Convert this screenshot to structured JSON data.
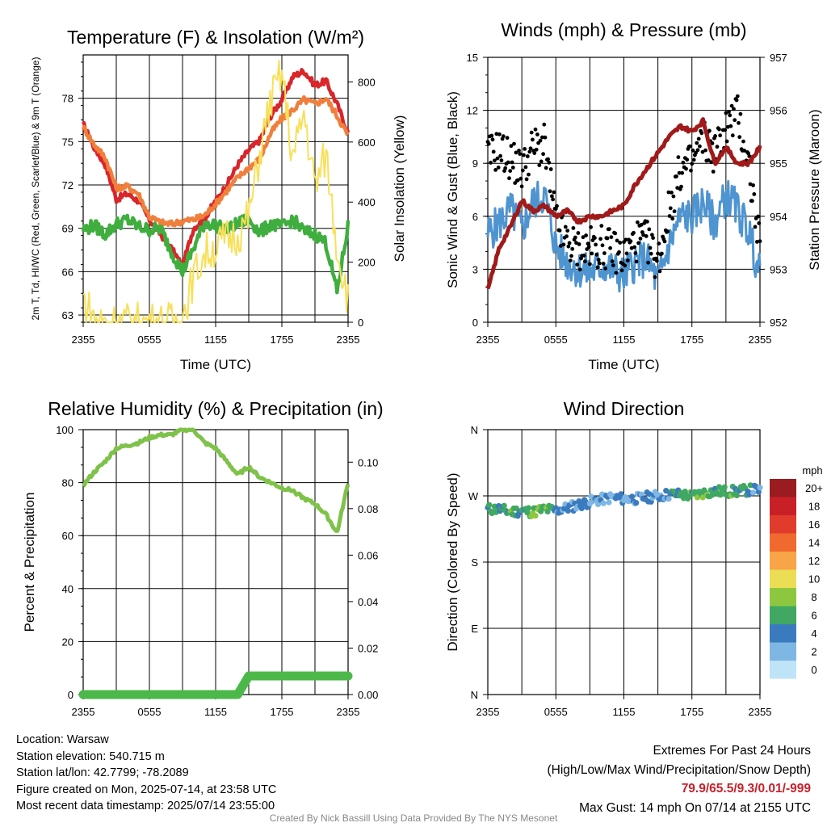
{
  "chart_data": [
    {
      "type": "line",
      "title": "Temperature (F) & Insolation (W/m²)",
      "xlabel": "Time (UTC)",
      "ylabel": "2m T, Td, HI/WC (Red, Green, Scarlet/Blue) & 9m T (Orange)",
      "ylabel2": "Solar Insolation (Yellow)",
      "x_ticks": [
        "2355",
        "0555",
        "1155",
        "1755",
        "2355"
      ],
      "y_ticks": [
        63,
        66,
        69,
        72,
        75,
        78
      ],
      "y2_ticks": [
        0,
        200,
        400,
        600,
        800
      ],
      "ylim": [
        62.5,
        81
      ],
      "y2lim": [
        0,
        890
      ],
      "x_hours": [
        0,
        1,
        2,
        3,
        4,
        5,
        6,
        7,
        8,
        9,
        10,
        11,
        12,
        13,
        14,
        15,
        16,
        17,
        18,
        19,
        20,
        21,
        22,
        23,
        24
      ],
      "series": [
        {
          "axis": "left",
          "color": "#d8262b",
          "values": [
            76.2,
            74.6,
            73.4,
            71.0,
            71.4,
            70.9,
            69.6,
            68.6,
            67.6,
            66.4,
            69.0,
            69.7,
            70.9,
            72.0,
            73.4,
            74.4,
            75.1,
            76.8,
            77.9,
            79.5,
            79.9,
            78.9,
            79.2,
            77.6,
            75.6
          ]
        },
        {
          "axis": "left",
          "color": "#f07f3c",
          "values": [
            76.0,
            74.8,
            73.9,
            71.8,
            71.9,
            71.4,
            69.8,
            69.4,
            69.3,
            69.5,
            69.6,
            69.9,
            70.7,
            71.6,
            72.5,
            73.2,
            73.8,
            75.6,
            76.6,
            77.2,
            77.9,
            77.6,
            78.0,
            76.8,
            75.4
          ]
        },
        {
          "axis": "left",
          "color": "#3fae3f",
          "values": [
            68.9,
            69.2,
            68.6,
            69.3,
            69.6,
            69.1,
            68.9,
            69.0,
            67.4,
            66.0,
            67.6,
            69.4,
            69.2,
            68.9,
            69.3,
            69.7,
            68.7,
            69.3,
            69.1,
            69.6,
            68.8,
            68.6,
            68.0,
            64.6,
            69.2
          ]
        },
        {
          "axis": "right",
          "color": "#f7e05a",
          "values": [
            80,
            10,
            0,
            0,
            0,
            0,
            0,
            0,
            0,
            20,
            150,
            230,
            250,
            280,
            290,
            350,
            560,
            740,
            830,
            540,
            700,
            450,
            560,
            250,
            80
          ]
        }
      ]
    },
    {
      "type": "scatter",
      "title": "Winds (mph) & Pressure (mb)",
      "xlabel": "Time (UTC)",
      "ylabel": "Sonic Wind & Gust (Blue, Black)",
      "ylabel2": "Station Pressure (Maroon)",
      "x_ticks": [
        "2355",
        "0555",
        "1155",
        "1755",
        "2355"
      ],
      "y_ticks": [
        0,
        3,
        6,
        9,
        12,
        15
      ],
      "y2_ticks": [
        952,
        953,
        954,
        955,
        956,
        957
      ],
      "ylim": [
        0,
        15
      ],
      "y2lim": [
        952,
        957
      ],
      "x_hours": [
        0,
        1,
        2,
        3,
        4,
        5,
        6,
        7,
        8,
        9,
        10,
        11,
        12,
        13,
        14,
        15,
        16,
        17,
        18,
        19,
        20,
        21,
        22,
        23,
        24
      ],
      "series": [
        {
          "axis": "left",
          "color": "#4e94d0",
          "values": [
            5.0,
            5.6,
            6.4,
            5.2,
            6.8,
            7.2,
            4.3,
            3.4,
            3.0,
            2.8,
            3.2,
            3.0,
            2.6,
            3.4,
            3.6,
            2.2,
            4.4,
            6.0,
            6.0,
            6.8,
            5.6,
            7.2,
            6.4,
            5.2,
            2.6
          ]
        },
        {
          "axis": "left",
          "color": "#000000",
          "values": [
            9.4,
            9.8,
            9.2,
            8.6,
            9.9,
            10.0,
            5.7,
            4.5,
            4.1,
            4.2,
            4.3,
            4.1,
            3.7,
            4.6,
            4.6,
            3.4,
            6.4,
            8.6,
            9.0,
            10.4,
            9.6,
            11.0,
            11.8,
            9.0,
            4.0
          ]
        },
        {
          "axis": "right",
          "color": "#a01a1a",
          "values": [
            952.6,
            953.4,
            953.8,
            954.3,
            954.1,
            954.2,
            954.0,
            954.1,
            953.9,
            954.0,
            954.0,
            954.1,
            954.2,
            954.6,
            954.9,
            955.2,
            955.5,
            955.7,
            955.6,
            955.8,
            955.0,
            955.3,
            955.0,
            955.0,
            955.3
          ]
        }
      ]
    },
    {
      "type": "line",
      "title": "Relative Humidity (%) & Precipitation (in)",
      "xlabel": "",
      "ylabel": "Percent & Precipitation",
      "x_ticks": [
        "2355",
        "0555",
        "1155",
        "1755",
        "2355"
      ],
      "y_ticks": [
        0,
        20,
        40,
        60,
        80,
        100
      ],
      "y2_ticks": [
        "0.00",
        "0.02",
        "0.04",
        "0.06",
        "0.08",
        "0.10"
      ],
      "ylim": [
        0,
        100
      ],
      "y2lim": [
        0,
        0.114
      ],
      "x_hours": [
        0,
        1,
        2,
        3,
        4,
        5,
        6,
        7,
        8,
        9,
        10,
        11,
        12,
        13,
        14,
        15,
        16,
        17,
        18,
        19,
        20,
        21,
        22,
        23,
        24
      ],
      "series": [
        {
          "axis": "left",
          "color": "#7fc24a",
          "values": [
            79,
            84,
            88,
            93,
            94,
            95,
            97,
            98,
            98,
            100,
            100,
            95,
            93,
            88,
            83,
            86,
            82,
            80,
            78,
            77,
            74,
            72,
            68,
            61,
            80
          ]
        },
        {
          "axis": "right",
          "color": "#4cb84a",
          "values": [
            0,
            0,
            0,
            0,
            0,
            0,
            0,
            0,
            0,
            0,
            0,
            0,
            0,
            0,
            0,
            0.008,
            0.008,
            0.008,
            0.008,
            0.008,
            0.008,
            0.008,
            0.008,
            0.008,
            0.008
          ]
        }
      ]
    },
    {
      "type": "scatter",
      "title": "Wind Direction",
      "xlabel": "",
      "ylabel": "Direction (Colored By Speed)",
      "x_ticks": [
        "2355",
        "0555",
        "1155",
        "1755",
        "2355"
      ],
      "y_ticks": [
        "N",
        "E",
        "S",
        "W",
        "N"
      ],
      "ylim": [
        0,
        360
      ],
      "x_hours": [
        0,
        1,
        2,
        3,
        4,
        5,
        6,
        7,
        8,
        9,
        10,
        11,
        12,
        13,
        14,
        15,
        16,
        17,
        18,
        19,
        20,
        21,
        22,
        23,
        24
      ],
      "direction_deg": [
        252,
        252,
        248,
        250,
        248,
        252,
        250,
        254,
        258,
        262,
        265,
        268,
        266,
        266,
        268,
        270,
        272,
        272,
        270,
        274,
        276,
        276,
        276,
        278,
        278
      ],
      "speed_mph": [
        5,
        5,
        6,
        5,
        7,
        7,
        4,
        3,
        3,
        3,
        3,
        3,
        3,
        3,
        4,
        2,
        4,
        6,
        6,
        7,
        6,
        7,
        6,
        5,
        3
      ],
      "legend": {
        "title": "mph",
        "labels": [
          "20+",
          "18",
          "16",
          "14",
          "12",
          "10",
          "8",
          "6",
          "4",
          "2",
          "0"
        ],
        "colors": [
          "#9b1c20",
          "#c92028",
          "#e13c2b",
          "#f06a30",
          "#f7a547",
          "#ebde55",
          "#8dc740",
          "#40a862",
          "#3a7bbf",
          "#7fb7e4",
          "#bfe3f7"
        ]
      }
    }
  ],
  "info": {
    "location": "Location: Warsaw",
    "elevation": "Station elevation: 540.715 m",
    "latlon": "Station lat/lon: 42.7799; -78.2089",
    "created": "Figure created on Mon, 2025-07-14, at 23:58 UTC",
    "recent": "Most recent data timestamp: 2025/07/14 23:55:00"
  },
  "extremes": {
    "heading": "Extremes For Past 24 Hours",
    "subheading": "(High/Low/Max Wind/Precipitation/Snow Depth)",
    "values": "79.9/65.5/9.3/0.01/-999",
    "gust": "Max Gust: 14 mph On 07/14 at 2155 UTC"
  },
  "credit": "Created By Nick Bassill Using Data Provided By The NYS Mesonet"
}
